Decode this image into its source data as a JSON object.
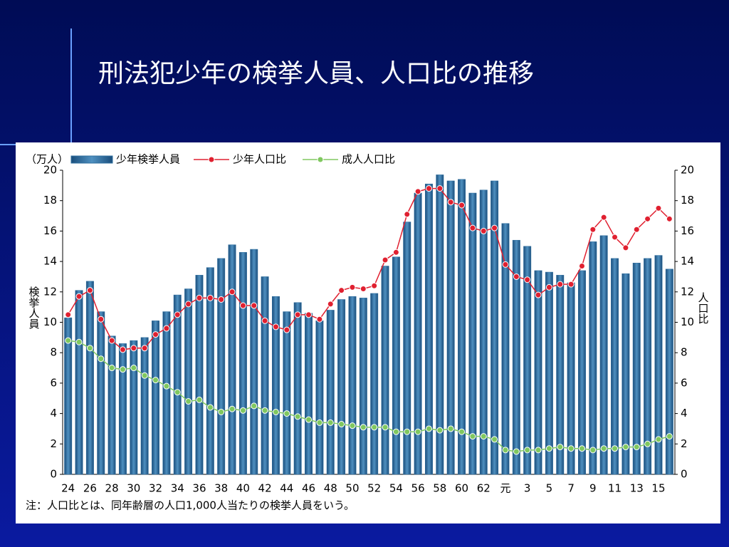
{
  "chart_data": {
    "type": "bar",
    "title": "刑法犯少年の検挙人員、人口比の推移",
    "unit_label": "（万人）",
    "ylabel": "検挙人員",
    "y2label": "人口比",
    "note": "注：人口比とは、同年齢層の人口1,000人当たりの検挙人員をいう。",
    "categories": [
      "24",
      null,
      "26",
      null,
      "28",
      null,
      "30",
      null,
      "32",
      null,
      "34",
      null,
      "36",
      null,
      "38",
      null,
      "40",
      null,
      "42",
      null,
      "44",
      null,
      "46",
      null,
      "48",
      null,
      "50",
      null,
      "52",
      null,
      "54",
      null,
      "56",
      null,
      "58",
      null,
      "60",
      null,
      "62",
      null,
      "元",
      null,
      "3",
      null,
      "5",
      null,
      "7",
      null,
      "9",
      null,
      "11",
      null,
      "13",
      null,
      "15",
      null
    ],
    "series": [
      {
        "name": "少年検挙人員",
        "type": "bar",
        "color": "#2f6f9f",
        "values": [
          10.3,
          12.1,
          12.7,
          10.7,
          9.1,
          8.6,
          8.8,
          9.0,
          10.1,
          10.7,
          11.8,
          12.2,
          13.1,
          13.6,
          14.2,
          15.1,
          14.6,
          14.8,
          13.0,
          11.7,
          10.7,
          11.3,
          10.6,
          10.1,
          10.8,
          11.5,
          11.7,
          11.6,
          11.9,
          13.7,
          14.3,
          16.6,
          18.5,
          19.1,
          19.7,
          19.3,
          19.4,
          18.5,
          18.7,
          19.3,
          16.5,
          15.4,
          15.0,
          13.4,
          13.3,
          13.1,
          12.6,
          13.4,
          15.3,
          15.7,
          14.2,
          13.2,
          13.9,
          14.2,
          14.4,
          13.5
        ]
      },
      {
        "name": "少年人口比",
        "type": "line",
        "axis": "y2",
        "color": "#e02030",
        "values": [
          10.5,
          11.7,
          12.1,
          10.2,
          8.8,
          8.2,
          8.3,
          8.3,
          9.2,
          9.6,
          10.5,
          11.2,
          11.6,
          11.6,
          11.5,
          12.0,
          11.1,
          11.1,
          10.1,
          9.7,
          9.5,
          10.5,
          10.5,
          10.2,
          11.2,
          12.1,
          12.3,
          12.2,
          12.4,
          14.1,
          14.6,
          17.1,
          18.6,
          18.8,
          18.8,
          17.9,
          17.7,
          16.2,
          16.0,
          16.2,
          13.8,
          13.0,
          12.8,
          11.8,
          12.3,
          12.5,
          12.5,
          13.7,
          16.1,
          16.9,
          15.6,
          14.9,
          16.1,
          16.8,
          17.5,
          16.8
        ]
      },
      {
        "name": "成人人口比",
        "type": "line",
        "axis": "y2",
        "color": "#80c860",
        "values": [
          8.8,
          8.7,
          8.3,
          7.6,
          7.0,
          6.9,
          7.0,
          6.5,
          6.2,
          5.8,
          5.4,
          4.8,
          4.9,
          4.4,
          4.1,
          4.3,
          4.2,
          4.5,
          4.2,
          4.1,
          4.0,
          3.8,
          3.6,
          3.4,
          3.4,
          3.3,
          3.2,
          3.1,
          3.1,
          3.1,
          2.8,
          2.8,
          2.8,
          3.0,
          2.9,
          3.0,
          2.8,
          2.5,
          2.5,
          2.3,
          1.6,
          1.5,
          1.6,
          1.6,
          1.7,
          1.8,
          1.7,
          1.7,
          1.6,
          1.7,
          1.7,
          1.8,
          1.8,
          2.0,
          2.3,
          2.5
        ]
      }
    ],
    "ylim": [
      0,
      20
    ],
    "yticks": [
      0,
      2,
      4,
      6,
      8,
      10,
      12,
      14,
      16,
      18,
      20
    ],
    "y2lim": [
      0,
      20
    ],
    "y2ticks": [
      0,
      2,
      4,
      6,
      8,
      10,
      12,
      14,
      16,
      18,
      20
    ],
    "grid": false
  }
}
